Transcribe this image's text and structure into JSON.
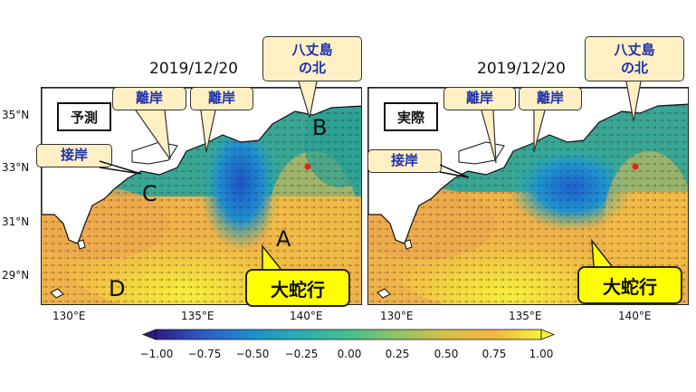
{
  "panels": {
    "left": {
      "date": "2019/12/20",
      "label": "予測",
      "callouts": {
        "hachijo": "八丈島\nの北",
        "rigan1": "離岸",
        "rigan2": "離岸",
        "setsugan": "接岸",
        "meander": "大蛇行"
      },
      "letters": [
        "A",
        "B",
        "C",
        "D"
      ]
    },
    "right": {
      "date": "2019/12/20",
      "label": "実際",
      "callouts": {
        "hachijo": "八丈島\nの北",
        "rigan1": "離岸",
        "rigan2": "離岸",
        "setsugan": "接岸",
        "meander": "大蛇行"
      }
    }
  },
  "axes": {
    "lat_ticks": [
      "35°N",
      "33°N",
      "31°N",
      "29°N"
    ],
    "lon_ticks_left": [
      "130°E",
      "135°E",
      "140°E"
    ],
    "lon_ticks_right": [
      "130°E",
      "135°E",
      "140°E"
    ]
  },
  "colorbar": {
    "ticks": [
      "−1.00",
      "−0.75",
      "−0.50",
      "−0.25",
      "0.00",
      "0.25",
      "0.50",
      "0.75",
      "1.00"
    ],
    "colors": [
      "#2c1c84",
      "#3159c6",
      "#1c8fcf",
      "#2ab0b0",
      "#46bf8e",
      "#8cc46a",
      "#d4c048",
      "#f2b640",
      "#f6f23a"
    ]
  }
}
